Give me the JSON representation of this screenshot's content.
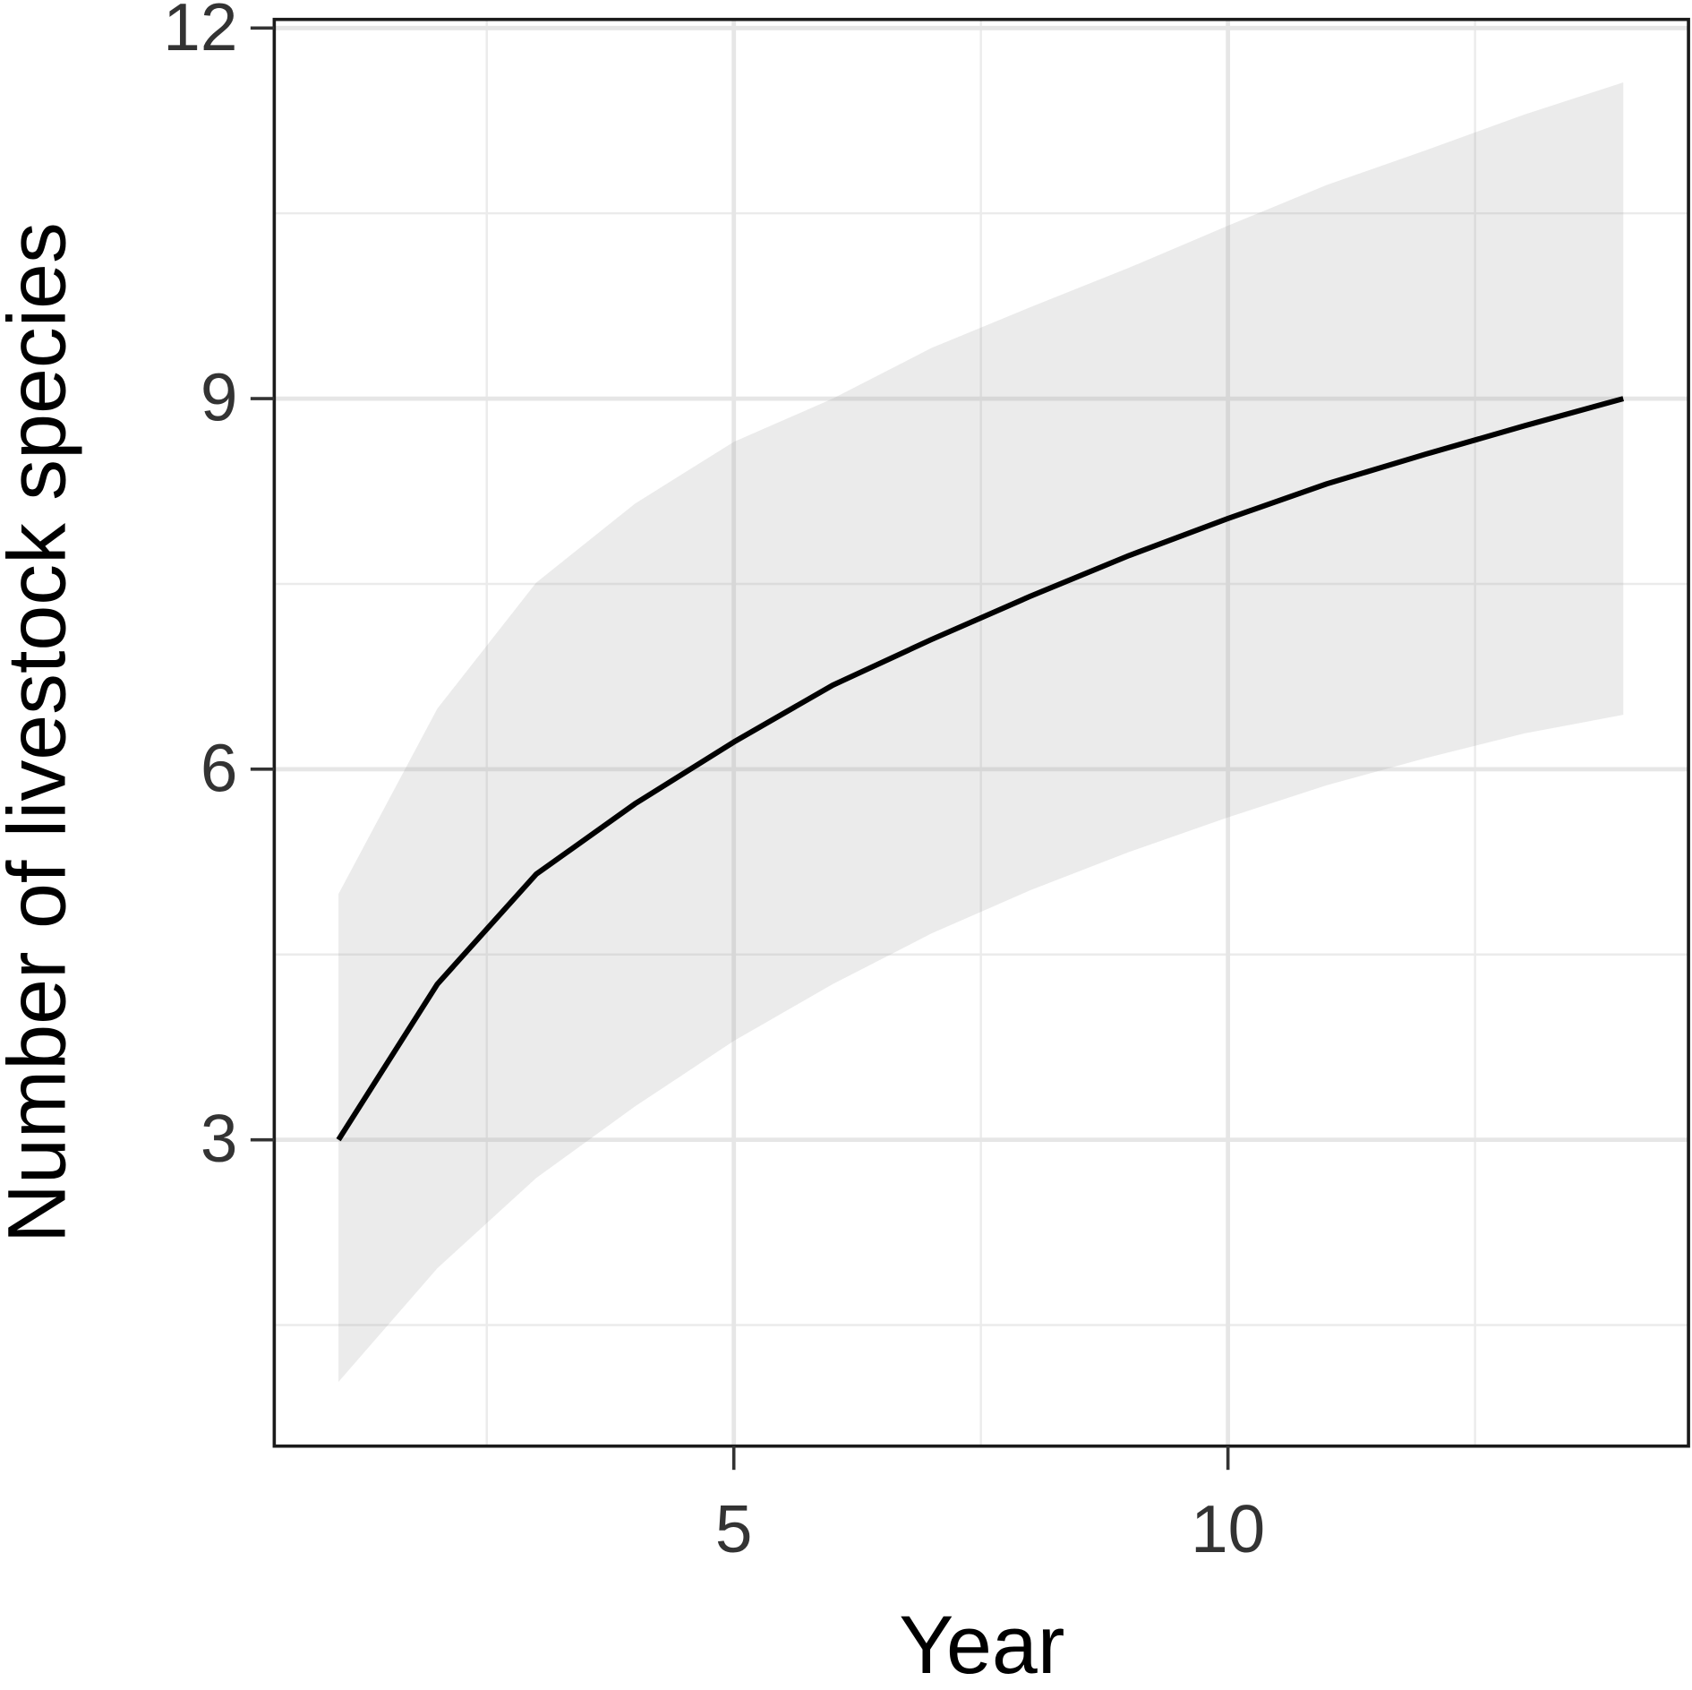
{
  "chart_data": {
    "type": "line",
    "x_label": "Year",
    "y_label": "Number of livestock species",
    "x": [
      1,
      2,
      3,
      4,
      5,
      6,
      7,
      8,
      9,
      10,
      11,
      12,
      13,
      14
    ],
    "values": [
      3.0,
      4.26,
      5.15,
      5.72,
      6.22,
      6.68,
      7.05,
      7.4,
      7.73,
      8.03,
      8.31,
      8.55,
      8.78,
      9.0
    ],
    "ci_upper": [
      4.99,
      6.49,
      7.51,
      8.15,
      8.65,
      9.0,
      9.41,
      9.74,
      10.06,
      10.4,
      10.73,
      11.01,
      11.3,
      11.56
    ],
    "ci_lower": [
      1.04,
      1.96,
      2.69,
      3.27,
      3.8,
      4.26,
      4.67,
      5.02,
      5.33,
      5.61,
      5.87,
      6.09,
      6.29,
      6.44
    ],
    "color": "#000000",
    "band_color": "#999999",
    "xlim": [
      0.35,
      14.66
    ],
    "ylim": [
      0.52,
      12.07
    ],
    "xticks": [
      5,
      10
    ],
    "yticks": [
      3,
      6,
      9,
      12
    ],
    "x_minor_grid": [
      2.5,
      7.5,
      12.5
    ],
    "y_minor_grid": [
      1.5,
      4.5,
      7.5,
      10.5
    ],
    "grid": true
  }
}
